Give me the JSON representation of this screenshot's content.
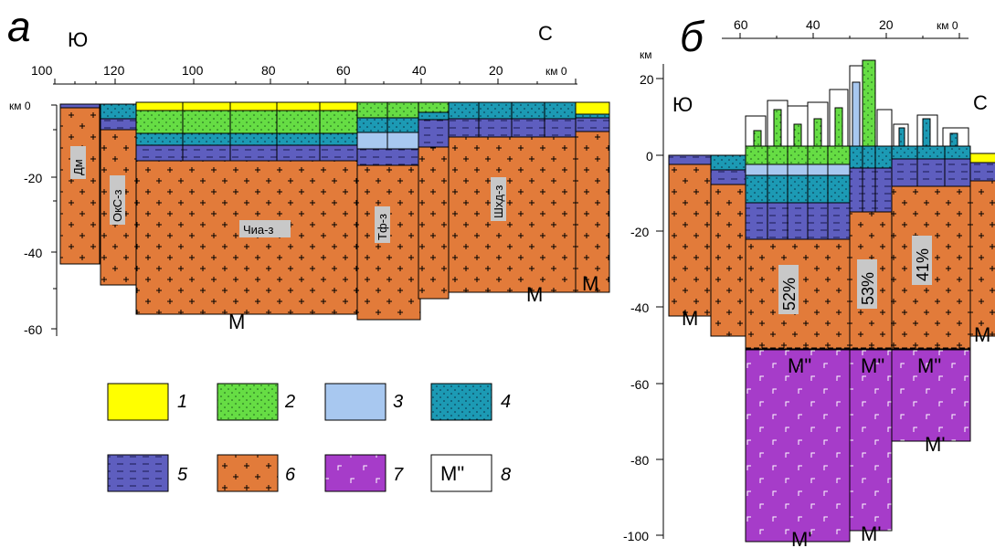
{
  "panel_a": {
    "letter": "а",
    "south": "Ю",
    "north": "С",
    "x_ticks": [
      "100",
      "120",
      "100",
      "80",
      "60",
      "40",
      "20",
      "км 0"
    ],
    "y_unit": "км 0",
    "y_ticks": [
      "-20",
      "-40",
      "-60"
    ],
    "labels": {
      "dm": "Дм",
      "oks": "ОкС-з",
      "chia": "Чиа-з",
      "tf": "Тф-з",
      "shkhd": "Шхд-з"
    },
    "m_label": "M"
  },
  "panel_b": {
    "letter": "б",
    "south": "Ю",
    "north": "С",
    "x_ticks": [
      "60",
      "40",
      "20",
      "км 0"
    ],
    "y_unit": "км",
    "y_ticks": [
      "20",
      "0",
      "-20",
      "-40",
      "-60",
      "-80",
      "-100"
    ],
    "percents": [
      "52%",
      "53%",
      "41%"
    ],
    "m_label": "M",
    "m2_label": "M\"",
    "m1_label": "M'"
  },
  "legend": [
    {
      "num": "1",
      "color": "#ffff00"
    },
    {
      "num": "2",
      "color": "#66dd44"
    },
    {
      "num": "3",
      "color": "#a8c8f0"
    },
    {
      "num": "4",
      "color": "#1c9ab4"
    },
    {
      "num": "5",
      "color": "#5e5ebf"
    },
    {
      "num": "6",
      "color": "#e27b3a"
    },
    {
      "num": "7",
      "color": "#a63cc9"
    },
    {
      "num": "8",
      "color": "#ffffff",
      "text": "M\""
    }
  ]
}
